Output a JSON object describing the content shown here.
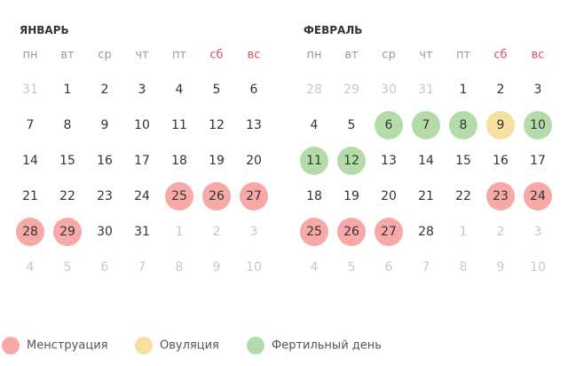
{
  "months": [
    {
      "title": "ЯНВАРЬ",
      "weekdays": [
        "пн",
        "вт",
        "ср",
        "чт",
        "пт",
        {
          "text": "сб",
          "color": "#e05252"
        },
        {
          "text": "вс",
          "color": "#e05252"
        }
      ],
      "weeks": [
        [
          {
            "text": "31",
            "muted": true
          },
          "1",
          "2",
          "3",
          "4",
          "5",
          "6"
        ],
        [
          "7",
          "8",
          "9",
          "10",
          "11",
          "12",
          "13"
        ],
        [
          "14",
          "15",
          "16",
          "17",
          "18",
          "19",
          "20"
        ],
        [
          "21",
          "22",
          "23",
          "24",
          {
            "text": "25",
            "color": "#f7a9a8"
          },
          {
            "text": "26",
            "color": "#f7a9a8"
          },
          {
            "text": "27",
            "color": "#f7a9a8"
          }
        ],
        [
          {
            "text": "28",
            "color": "#f7a9a8"
          },
          {
            "text": "29",
            "color": "#f7a9a8"
          },
          "30",
          "31",
          {
            "text": "1",
            "muted": true
          },
          {
            "text": "2",
            "muted": true
          },
          {
            "text": "3",
            "muted": true
          }
        ],
        [
          {
            "text": "4",
            "muted": true
          },
          {
            "text": "5",
            "muted": true
          },
          {
            "text": "6",
            "muted": true
          },
          {
            "text": "7",
            "muted": true
          },
          {
            "text": "8",
            "muted": true
          },
          {
            "text": "9",
            "muted": true
          },
          {
            "text": "10",
            "muted": true
          }
        ]
      ]
    },
    {
      "title": "ФЕВРАЛЬ",
      "weekdays": [
        "пн",
        "вт",
        "ср",
        "чт",
        "пт",
        {
          "text": "сб",
          "color": "#e05252"
        },
        {
          "text": "вс",
          "color": "#e05252"
        }
      ],
      "weeks": [
        [
          {
            "text": "28",
            "muted": true
          },
          {
            "text": "29",
            "muted": true
          },
          {
            "text": "30",
            "muted": true
          },
          {
            "text": "31",
            "muted": true
          },
          "1",
          "2",
          "3"
        ],
        [
          "4",
          "5",
          {
            "text": "6",
            "color": "#b5dbab"
          },
          {
            "text": "7",
            "color": "#b5dbab"
          },
          {
            "text": "8",
            "color": "#b5dbab"
          },
          {
            "text": "9",
            "color": "#f7dfa0"
          },
          {
            "text": "10",
            "color": "#b5dbab"
          }
        ],
        [
          {
            "text": "11",
            "color": "#b5dbab"
          },
          {
            "text": "12",
            "color": "#b5dbab"
          },
          "13",
          "14",
          "15",
          "16",
          "17"
        ],
        [
          "18",
          "19",
          "20",
          "21",
          "22",
          {
            "text": "23",
            "color": "#f7a9a8"
          },
          {
            "text": "24",
            "color": "#f7a9a8"
          }
        ],
        [
          {
            "text": "25",
            "color": "#f7a9a8"
          },
          {
            "text": "26",
            "color": "#f7a9a8"
          },
          {
            "text": "27",
            "color": "#f7a9a8"
          },
          "28",
          {
            "text": "1",
            "muted": true
          },
          {
            "text": "2",
            "muted": true
          },
          {
            "text": "3",
            "muted": true
          }
        ],
        [
          {
            "text": "4",
            "muted": true
          },
          {
            "text": "5",
            "muted": true
          },
          {
            "text": "6",
            "muted": true
          },
          {
            "text": "7",
            "muted": true
          },
          {
            "text": "8",
            "muted": true
          },
          {
            "text": "9",
            "muted": true
          },
          {
            "text": "10",
            "muted": true
          }
        ]
      ]
    }
  ],
  "legend": [
    {
      "label": "Менструация",
      "color": "#f7a9a8"
    },
    {
      "label": "Овуляция",
      "color": "#f7dfa0"
    },
    {
      "label": "Фертильный день",
      "color": "#b5dbab"
    }
  ]
}
